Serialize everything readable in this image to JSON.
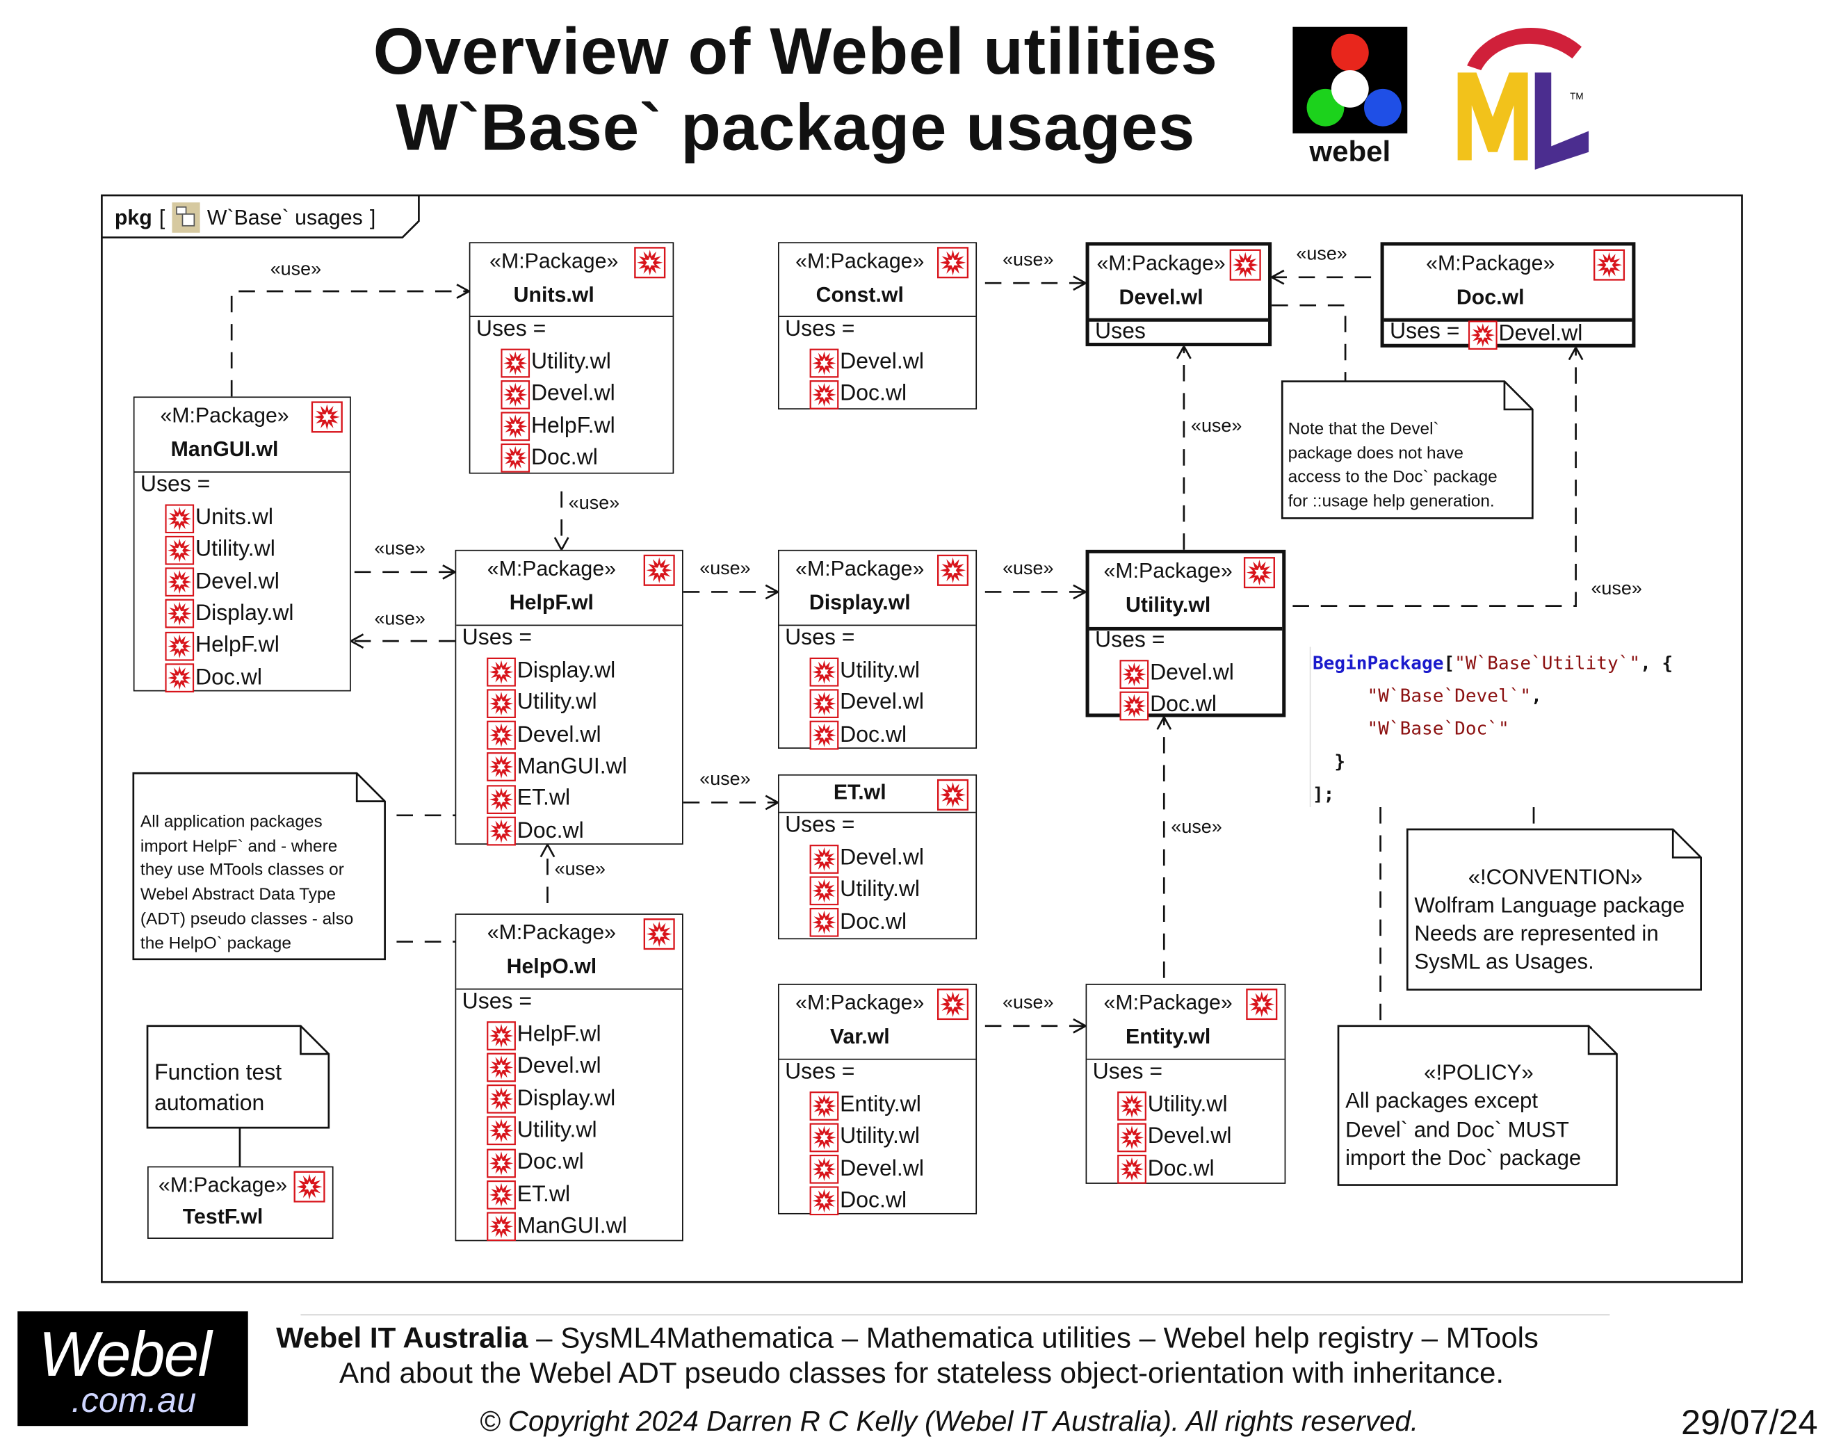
{
  "title": {
    "line1": "Overview of Webel utilities",
    "line2": "W`Base` package usages"
  },
  "logos": {
    "webel_top": "webel",
    "sysml": "SysML",
    "webel_bottom_main": "Webel",
    "webel_bottom_domain": ".com.au"
  },
  "frame": {
    "kind": "pkg",
    "open_bracket": "[",
    "name": "W`Base` usages",
    "close_bracket": "]"
  },
  "packages": {
    "units": {
      "stereotype": "«M:Package»",
      "name": "Units.wl",
      "uses_label": "Uses =",
      "uses": [
        "Utility.wl",
        "Devel.wl",
        "HelpF.wl",
        "Doc.wl"
      ]
    },
    "const": {
      "stereotype": "«M:Package»",
      "name": "Const.wl",
      "uses_label": "Uses =",
      "uses": [
        "Devel.wl",
        "Doc.wl"
      ]
    },
    "devel": {
      "stereotype": "«M:Package»",
      "name": "Devel.wl",
      "uses_label": "Uses",
      "uses": []
    },
    "doc": {
      "stereotype": "«M:Package»",
      "name": "Doc.wl",
      "uses_label": "Uses =",
      "uses": [
        "Devel.wl"
      ]
    },
    "mangui": {
      "stereotype": "«M:Package»",
      "name": "ManGUI.wl",
      "uses_label": "Uses =",
      "uses": [
        "Units.wl",
        "Utility.wl",
        "Devel.wl",
        "Display.wl",
        "HelpF.wl",
        "Doc.wl"
      ]
    },
    "helpf": {
      "stereotype": "«M:Package»",
      "name": "HelpF.wl",
      "uses_label": "Uses =",
      "uses": [
        "Display.wl",
        "Utility.wl",
        "Devel.wl",
        "ManGUI.wl",
        "ET.wl",
        "Doc.wl"
      ]
    },
    "display": {
      "stereotype": "«M:Package»",
      "name": "Display.wl",
      "uses_label": "Uses =",
      "uses": [
        "Utility.wl",
        "Devel.wl",
        "Doc.wl"
      ]
    },
    "utility": {
      "stereotype": "«M:Package»",
      "name": "Utility.wl",
      "uses_label": "Uses =",
      "uses": [
        "Devel.wl",
        "Doc.wl"
      ]
    },
    "et": {
      "stereotype": "",
      "name": "ET.wl",
      "uses_label": "Uses =",
      "uses": [
        "Devel.wl",
        "Utility.wl",
        "Doc.wl"
      ]
    },
    "helpo": {
      "stereotype": "«M:Package»",
      "name": "HelpO.wl",
      "uses_label": "Uses =",
      "uses": [
        "HelpF.wl",
        "Devel.wl",
        "Display.wl",
        "Utility.wl",
        "Doc.wl",
        "ET.wl",
        "ManGUI.wl"
      ]
    },
    "var": {
      "stereotype": "«M:Package»",
      "name": "Var.wl",
      "uses_label": "Uses =",
      "uses": [
        "Entity.wl",
        "Utility.wl",
        "Devel.wl",
        "Doc.wl"
      ]
    },
    "entity": {
      "stereotype": "«M:Package»",
      "name": "Entity.wl",
      "uses_label": "Uses =",
      "uses": [
        "Utility.wl",
        "Devel.wl",
        "Doc.wl"
      ]
    },
    "testf": {
      "stereotype": "«M:Package»",
      "name": "TestF.wl"
    }
  },
  "dependencies": [
    {
      "from": "ManGUI.wl",
      "to": "Units.wl",
      "label": "«use»"
    },
    {
      "from": "Units.wl",
      "to": "HelpF.wl",
      "label": "«use»"
    },
    {
      "from": "ManGUI.wl",
      "to": "HelpF.wl",
      "label": "«use»"
    },
    {
      "from": "HelpF.wl",
      "to": "ManGUI.wl",
      "label": "«use»"
    },
    {
      "from": "HelpF.wl",
      "to": "Display.wl",
      "label": "«use»"
    },
    {
      "from": "Display.wl",
      "to": "Utility.wl",
      "label": "«use»"
    },
    {
      "from": "HelpF.wl",
      "to": "ET.wl",
      "label": "«use»"
    },
    {
      "from": "HelpO.wl",
      "to": "HelpF.wl",
      "label": "«use»"
    },
    {
      "from": "Const.wl",
      "to": "Devel.wl",
      "label": "«use»"
    },
    {
      "from": "Doc.wl",
      "to": "Devel.wl",
      "label": "«use»"
    },
    {
      "from": "Utility.wl",
      "to": "Devel.wl",
      "label": "«use»"
    },
    {
      "from": "Utility.wl",
      "to": "Doc.wl",
      "label": "«use»"
    },
    {
      "from": "Entity.wl",
      "to": "Utility.wl",
      "label": "«use»"
    },
    {
      "from": "Var.wl",
      "to": "Entity.wl",
      "label": "«use»"
    }
  ],
  "notes": {
    "devel_note": [
      "Note that the Devel`",
      "package does not have",
      "access to the Doc` package",
      "for ::usage help generation."
    ],
    "app_note": [
      "All application packages",
      "import HelpF` and - where",
      "they use MTools classes or",
      "Webel Abstract Data Type",
      "(ADT) pseudo classes - also",
      "the HelpO` package"
    ],
    "functest_note": [
      "Function test",
      "automation"
    ],
    "convention": {
      "stereotype": "«!CONVENTION»",
      "lines": [
        "Wolfram Language package",
        "Needs are represented in",
        "SysML as Usages."
      ]
    },
    "policy": {
      "stereotype": "«!POLICY»",
      "lines": [
        "All packages except",
        "Devel` and Doc` MUST",
        "import the Doc` package"
      ]
    }
  },
  "code": [
    [
      {
        "t": "BeginPackage",
        "c": "kw"
      },
      {
        "t": "[",
        "c": "pn"
      },
      {
        "t": "\"W`Base`Utility`\"",
        "c": "st"
      },
      {
        "t": ", {",
        "c": "pn"
      }
    ],
    [
      {
        "t": "     ",
        "c": "pn"
      },
      {
        "t": "\"W`Base`Devel`\"",
        "c": "st"
      },
      {
        "t": ",",
        "c": "pn"
      }
    ],
    [
      {
        "t": "     ",
        "c": "pn"
      },
      {
        "t": "\"W`Base`Doc`\"",
        "c": "st"
      }
    ],
    [
      {
        "t": "  }",
        "c": "pn"
      }
    ],
    [
      {
        "t": "];",
        "c": "pn"
      }
    ]
  ],
  "footer": {
    "company": "Webel IT Australia",
    "line1_rest": " – SysML4Mathematica – Mathematica utilities – Webel help registry – MTools",
    "line2": "And about the Webel ADT pseudo classes for stateless object-orientation with inheritance.",
    "copyright": "© Copyright 2024 Darren R C Kelly (Webel IT Australia). All rights reserved.",
    "date": "29/07/24"
  },
  "colors": {
    "wolfram_red": "#d8141b",
    "code_keyword": "#1a1acc",
    "code_string": "#8b1010",
    "sysml_yellow": "#f2c21b",
    "sysml_red": "#d0203a",
    "sysml_purple": "#4b2d8f"
  },
  "icons": {
    "package_icon": "wolfram-spikey-icon",
    "frame_icon": "package-diagram-icon"
  }
}
